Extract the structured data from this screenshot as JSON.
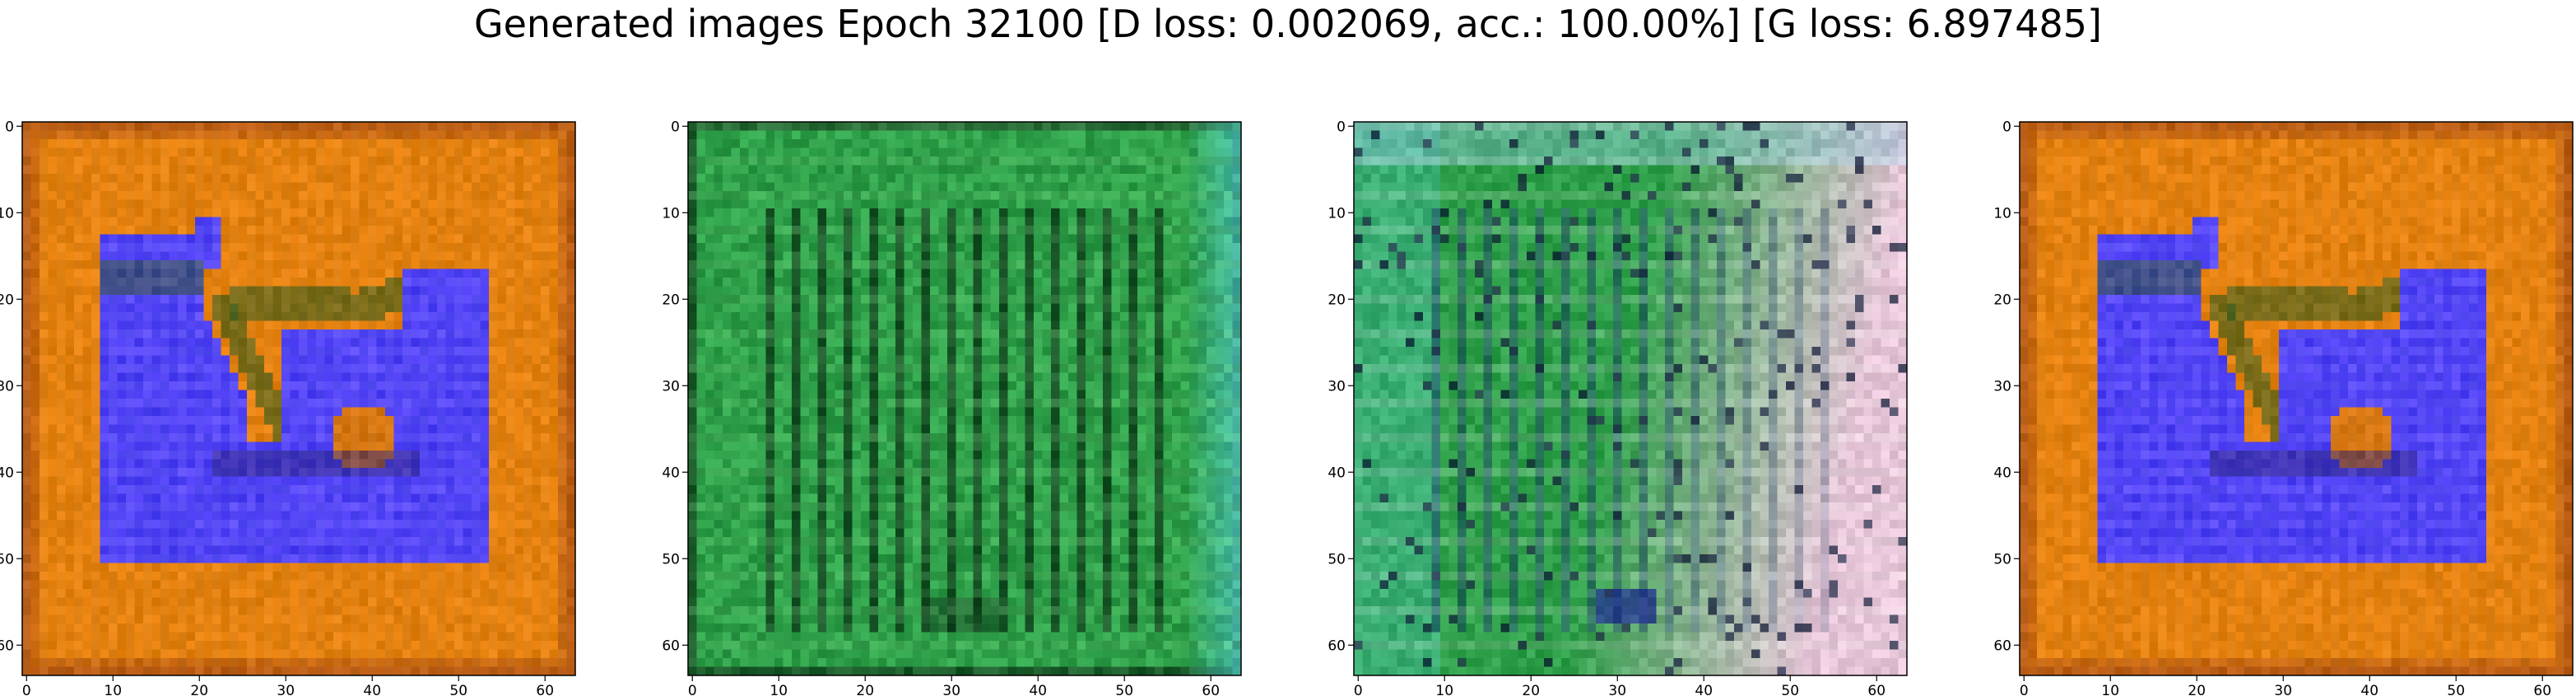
{
  "figure": {
    "title": "Generated images Epoch 32100 [D loss: 0.002069, acc.: 100.00%] [G loss: 6.897485]"
  },
  "panels": [
    {
      "name": "generated-image-1",
      "palette": "orange-blue",
      "xticks": [
        "0",
        "10",
        "20",
        "30",
        "40",
        "50",
        "60"
      ],
      "yticks": [
        "0",
        "10",
        "20",
        "30",
        "40",
        "50",
        "60"
      ]
    },
    {
      "name": "generated-image-2",
      "palette": "green-stripes",
      "xticks": [
        "0",
        "10",
        "20",
        "30",
        "40",
        "50",
        "60"
      ],
      "yticks": [
        "0",
        "10",
        "20",
        "30",
        "40",
        "50",
        "60"
      ]
    },
    {
      "name": "generated-image-3",
      "palette": "green-pastel",
      "xticks": [
        "0",
        "10",
        "20",
        "30",
        "40",
        "50",
        "60"
      ],
      "yticks": [
        "0",
        "10",
        "20",
        "30",
        "40",
        "50",
        "60"
      ]
    },
    {
      "name": "generated-image-4",
      "palette": "orange-blue",
      "xticks": [
        "0",
        "10",
        "20",
        "30",
        "40",
        "50",
        "60"
      ],
      "yticks": [
        "0",
        "10",
        "20",
        "30",
        "40",
        "50",
        "60"
      ]
    }
  ],
  "image_grid_size": 64,
  "colors": {
    "orange": "#e37f0c",
    "blue": "#4a3cf2",
    "dark_green": "#2f5a1c",
    "green": "#2fa04a",
    "dark_stripe": "#14401f",
    "pastel_pink": "#e6c6d8",
    "teal": "#4fc6c0"
  }
}
